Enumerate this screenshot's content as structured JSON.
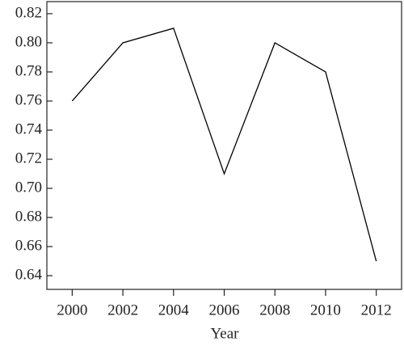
{
  "chart_data": {
    "type": "line",
    "x_label": "Year",
    "x": [
      2000,
      2002,
      2004,
      2006,
      2008,
      2010,
      2012
    ],
    "series": [
      {
        "color": "#000000",
        "values": [
          0.76,
          0.8,
          0.81,
          0.71,
          0.8,
          0.78,
          0.65
        ]
      }
    ],
    "xlim": [
      1999,
      2013
    ],
    "xticks": [
      2000,
      2002,
      2004,
      2006,
      2008,
      2010,
      2012
    ],
    "ylim": [
      0.6306,
      0.8283
    ],
    "yticks": [
      0.64,
      0.66,
      0.68,
      {
        "value": 0.7,
        "label": "0.70"
      },
      0.72,
      0.74,
      0.76,
      0.78,
      {
        "value": 0.8,
        "label": "0.80"
      },
      0.82
    ]
  }
}
